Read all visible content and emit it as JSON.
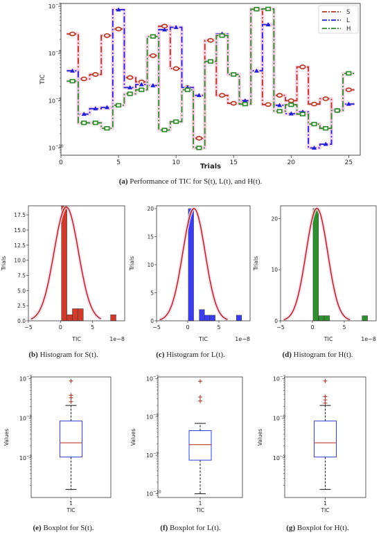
{
  "captions": [
    {
      "letter": "(a)",
      "text": "Performance of TIC for S(t), L(t), and H(t)."
    },
    {
      "letter": "(b)",
      "text": "Histogram for S(t)."
    },
    {
      "letter": "(c)",
      "text": "Histogram for L(t)."
    },
    {
      "letter": "(d)",
      "text": "Histogram for H(t)."
    },
    {
      "letter": "(e)",
      "text": "Boxplot for S(t)."
    },
    {
      "letter": "(f)",
      "text": "Boxplot for L(t)."
    },
    {
      "letter": "(g)",
      "text": "Boxplot for H(t)."
    }
  ],
  "chart_data": [
    {
      "id": "a",
      "type": "line",
      "scale": "log-y",
      "xlabel": "Trials",
      "ylabel": "TIC",
      "xlim": [
        0,
        26
      ],
      "ylim": [
        7e-11,
        1.15e-07
      ],
      "xticks": [
        0,
        5,
        10,
        15,
        20,
        25
      ],
      "xtick_labels": [
        "0",
        "5",
        "10",
        "15",
        "20",
        "25"
      ],
      "yticks": [
        1e-10,
        1e-09,
        1e-08,
        1e-07
      ],
      "ytick_labels": [
        "10",
        "10",
        "10",
        "10"
      ],
      "ytick_exps": [
        "−10",
        "−9",
        "−8",
        "−7"
      ],
      "legend_position": "top-right",
      "x": [
        1,
        2,
        3,
        4,
        5,
        6,
        7,
        8,
        9,
        10,
        11,
        12,
        13,
        14,
        15,
        16,
        17,
        18,
        19,
        20,
        21,
        22,
        23,
        24,
        25
      ],
      "series": [
        {
          "name": "S",
          "color": "#b5341e",
          "marker": "circle",
          "values": [
            2.6e-08,
            2.9e-09,
            3.6e-09,
            2.4e-08,
            3.3e-08,
            3.1e-09,
            2.5e-09,
            9e-09,
            3.8e-08,
            4.8e-09,
            1.9e-09,
            1.6e-10,
            1.9e-08,
            1.3e-09,
            8.8e-10,
            9.5e-10,
            8.7e-08,
            8.3e-10,
            1.3e-09,
            1e-09,
            5.2e-09,
            8.5e-10,
            1.1e-09,
            6.2e-10,
            1.7e-09
          ]
        },
        {
          "name": "L",
          "color": "#1f1fd6",
          "marker": "triangle",
          "values": [
            4.3e-09,
            5.2e-10,
            6.8e-10,
            7.2e-10,
            8.5e-08,
            1.9e-09,
            2.2e-09,
            2.1e-09,
            3.2e-08,
            3.6e-08,
            1.9e-09,
            1.3e-09,
            6.8e-09,
            2.6e-08,
            3.6e-09,
            1e-09,
            4.3e-09,
            4.1e-08,
            8e-10,
            5.3e-10,
            5.8e-10,
            1e-10,
            1.2e-10,
            6.3e-10,
            8.5e-10
          ]
        },
        {
          "name": "H",
          "color": "#2a8a2a",
          "marker": "square",
          "values": [
            2.6e-09,
            3.4e-10,
            3.4e-10,
            2.6e-10,
            8e-10,
            1.4e-09,
            1.7e-09,
            2.3e-08,
            2.4e-10,
            3.6e-10,
            1.7e-09,
            1e-10,
            6.8e-09,
            2.4e-08,
            3.6e-09,
            8.5e-10,
            8.7e-08,
            8.8e-08,
            6e-10,
            8.2e-10,
            5.2e-10,
            3.2e-10,
            2.6e-10,
            6.2e-10,
            3.8e-09
          ]
        }
      ]
    },
    {
      "id": "b",
      "type": "bar",
      "subtype": "histogram",
      "xlabel": "TIC",
      "ylabel": "Trials",
      "offset_text": "1e−8",
      "xlim": [
        -5,
        10
      ],
      "ylim": [
        0,
        19
      ],
      "xticks": [
        -5,
        0,
        5
      ],
      "xtick_labels": [
        "−5",
        "0",
        "5"
      ],
      "yticks": [
        0,
        2.5,
        5,
        7.5,
        10,
        12.5,
        15,
        17.5
      ],
      "ytick_labels": [
        "0.0",
        "2.5",
        "5.0",
        "7.5",
        "10.0",
        "12.5",
        "15.0",
        "17.5"
      ],
      "bar_color": "#cf3a2a",
      "bin_width": 0.85,
      "bins": [
        {
          "x": 0.15,
          "count": 19
        },
        {
          "x": 1.0,
          "count": 1
        },
        {
          "x": 1.85,
          "count": 2
        },
        {
          "x": 2.7,
          "count": 2
        },
        {
          "x": 7.8,
          "count": 1
        }
      ],
      "curve": {
        "mean": 0.9,
        "sd": 1.9,
        "peak": 18.8,
        "color": "#a3241a",
        "range": [
          -4.6,
          6.3
        ]
      }
    },
    {
      "id": "c",
      "type": "bar",
      "subtype": "histogram",
      "xlabel": "TIC",
      "ylabel": "Trials",
      "offset_text": "1e−8",
      "xlim": [
        -5,
        10
      ],
      "ylim": [
        0,
        20.5
      ],
      "xticks": [
        -5,
        0,
        5
      ],
      "xtick_labels": [
        "−5",
        "0",
        "5"
      ],
      "yticks": [
        0,
        5,
        10,
        15,
        20
      ],
      "ytick_labels": [
        "0",
        "5",
        "10",
        "15",
        "20"
      ],
      "bar_color": "#3b3bf0",
      "bin_width": 0.85,
      "bins": [
        {
          "x": 0.1,
          "count": 20
        },
        {
          "x": 1.85,
          "count": 2
        },
        {
          "x": 2.7,
          "count": 1
        },
        {
          "x": 3.55,
          "count": 1
        },
        {
          "x": 7.8,
          "count": 1
        }
      ],
      "curve": {
        "mean": 1.0,
        "sd": 1.8,
        "peak": 20.0,
        "color": "#a3241a",
        "range": [
          -4.5,
          6.4
        ]
      }
    },
    {
      "id": "d",
      "type": "bar",
      "subtype": "histogram",
      "xlabel": "TIC",
      "ylabel": "Trials",
      "offset_text": "1e−8",
      "xlim": [
        -5,
        10
      ],
      "ylim": [
        0,
        22.5
      ],
      "xticks": [
        -5,
        0,
        5
      ],
      "xtick_labels": [
        "−5",
        "0",
        "5"
      ],
      "yticks": [
        0,
        10,
        20
      ],
      "ytick_labels": [
        "0",
        "10",
        "20"
      ],
      "bar_color": "#2f8f2f",
      "bin_width": 0.85,
      "bins": [
        {
          "x": 0.1,
          "count": 22
        },
        {
          "x": 1.0,
          "count": 1
        },
        {
          "x": 1.85,
          "count": 1
        },
        {
          "x": 7.8,
          "count": 1
        }
      ],
      "curve": {
        "mean": 0.7,
        "sd": 1.7,
        "peak": 22.0,
        "color": "#a3241a",
        "range": [
          -4.5,
          5.9
        ]
      }
    },
    {
      "id": "e",
      "type": "box",
      "scale": "log-y",
      "xlabel": "TIC",
      "ylabel": "Values",
      "category": "1",
      "ylim": [
        1e-10,
        1.1e-07
      ],
      "yticks": [
        1e-09,
        1e-08,
        1e-07
      ],
      "ytick_labels": [
        "10",
        "10",
        "10"
      ],
      "ytick_exps": [
        "−9",
        "−8",
        "−7"
      ],
      "whisker_low": 1.6e-10,
      "q1": 1.05e-09,
      "median": 2.4e-09,
      "q3": 8.5e-09,
      "whisker_high": 2.1e-08,
      "outliers": [
        2.6e-08,
        3.3e-08,
        3.8e-08,
        8.7e-08
      ]
    },
    {
      "id": "f",
      "type": "box",
      "scale": "log-y",
      "xlabel": "TIC",
      "ylabel": "Values",
      "category": "1",
      "ylim": [
        8e-11,
        1.1e-07
      ],
      "yticks": [
        1e-10,
        1e-09,
        1e-08,
        1e-07
      ],
      "ytick_labels": [
        "10",
        "10",
        "10",
        "10"
      ],
      "ytick_exps": [
        "−10",
        "−9",
        "−8",
        "−7"
      ],
      "whisker_low": 1e-10,
      "q1": 7.5e-10,
      "median": 1.9e-09,
      "q3": 4.4e-09,
      "whisker_high": 6.8e-09,
      "outliers": [
        2.6e-08,
        3.3e-08,
        8.5e-08
      ]
    },
    {
      "id": "g",
      "type": "box",
      "scale": "log-y",
      "xlabel": "TIC",
      "ylabel": "Values",
      "category": "1",
      "ylim": [
        1e-10,
        1.1e-07
      ],
      "yticks": [
        1e-09,
        1e-08,
        1e-07
      ],
      "ytick_labels": [
        "10",
        "10",
        "10"
      ],
      "ytick_exps": [
        "−9",
        "−8",
        "−7"
      ],
      "whisker_low": 1.6e-10,
      "q1": 1.05e-09,
      "median": 2.4e-09,
      "q3": 8.5e-09,
      "whisker_high": 2.1e-08,
      "outliers": [
        2.4e-08,
        2.9e-08,
        3.5e-08,
        8.7e-08
      ]
    }
  ]
}
